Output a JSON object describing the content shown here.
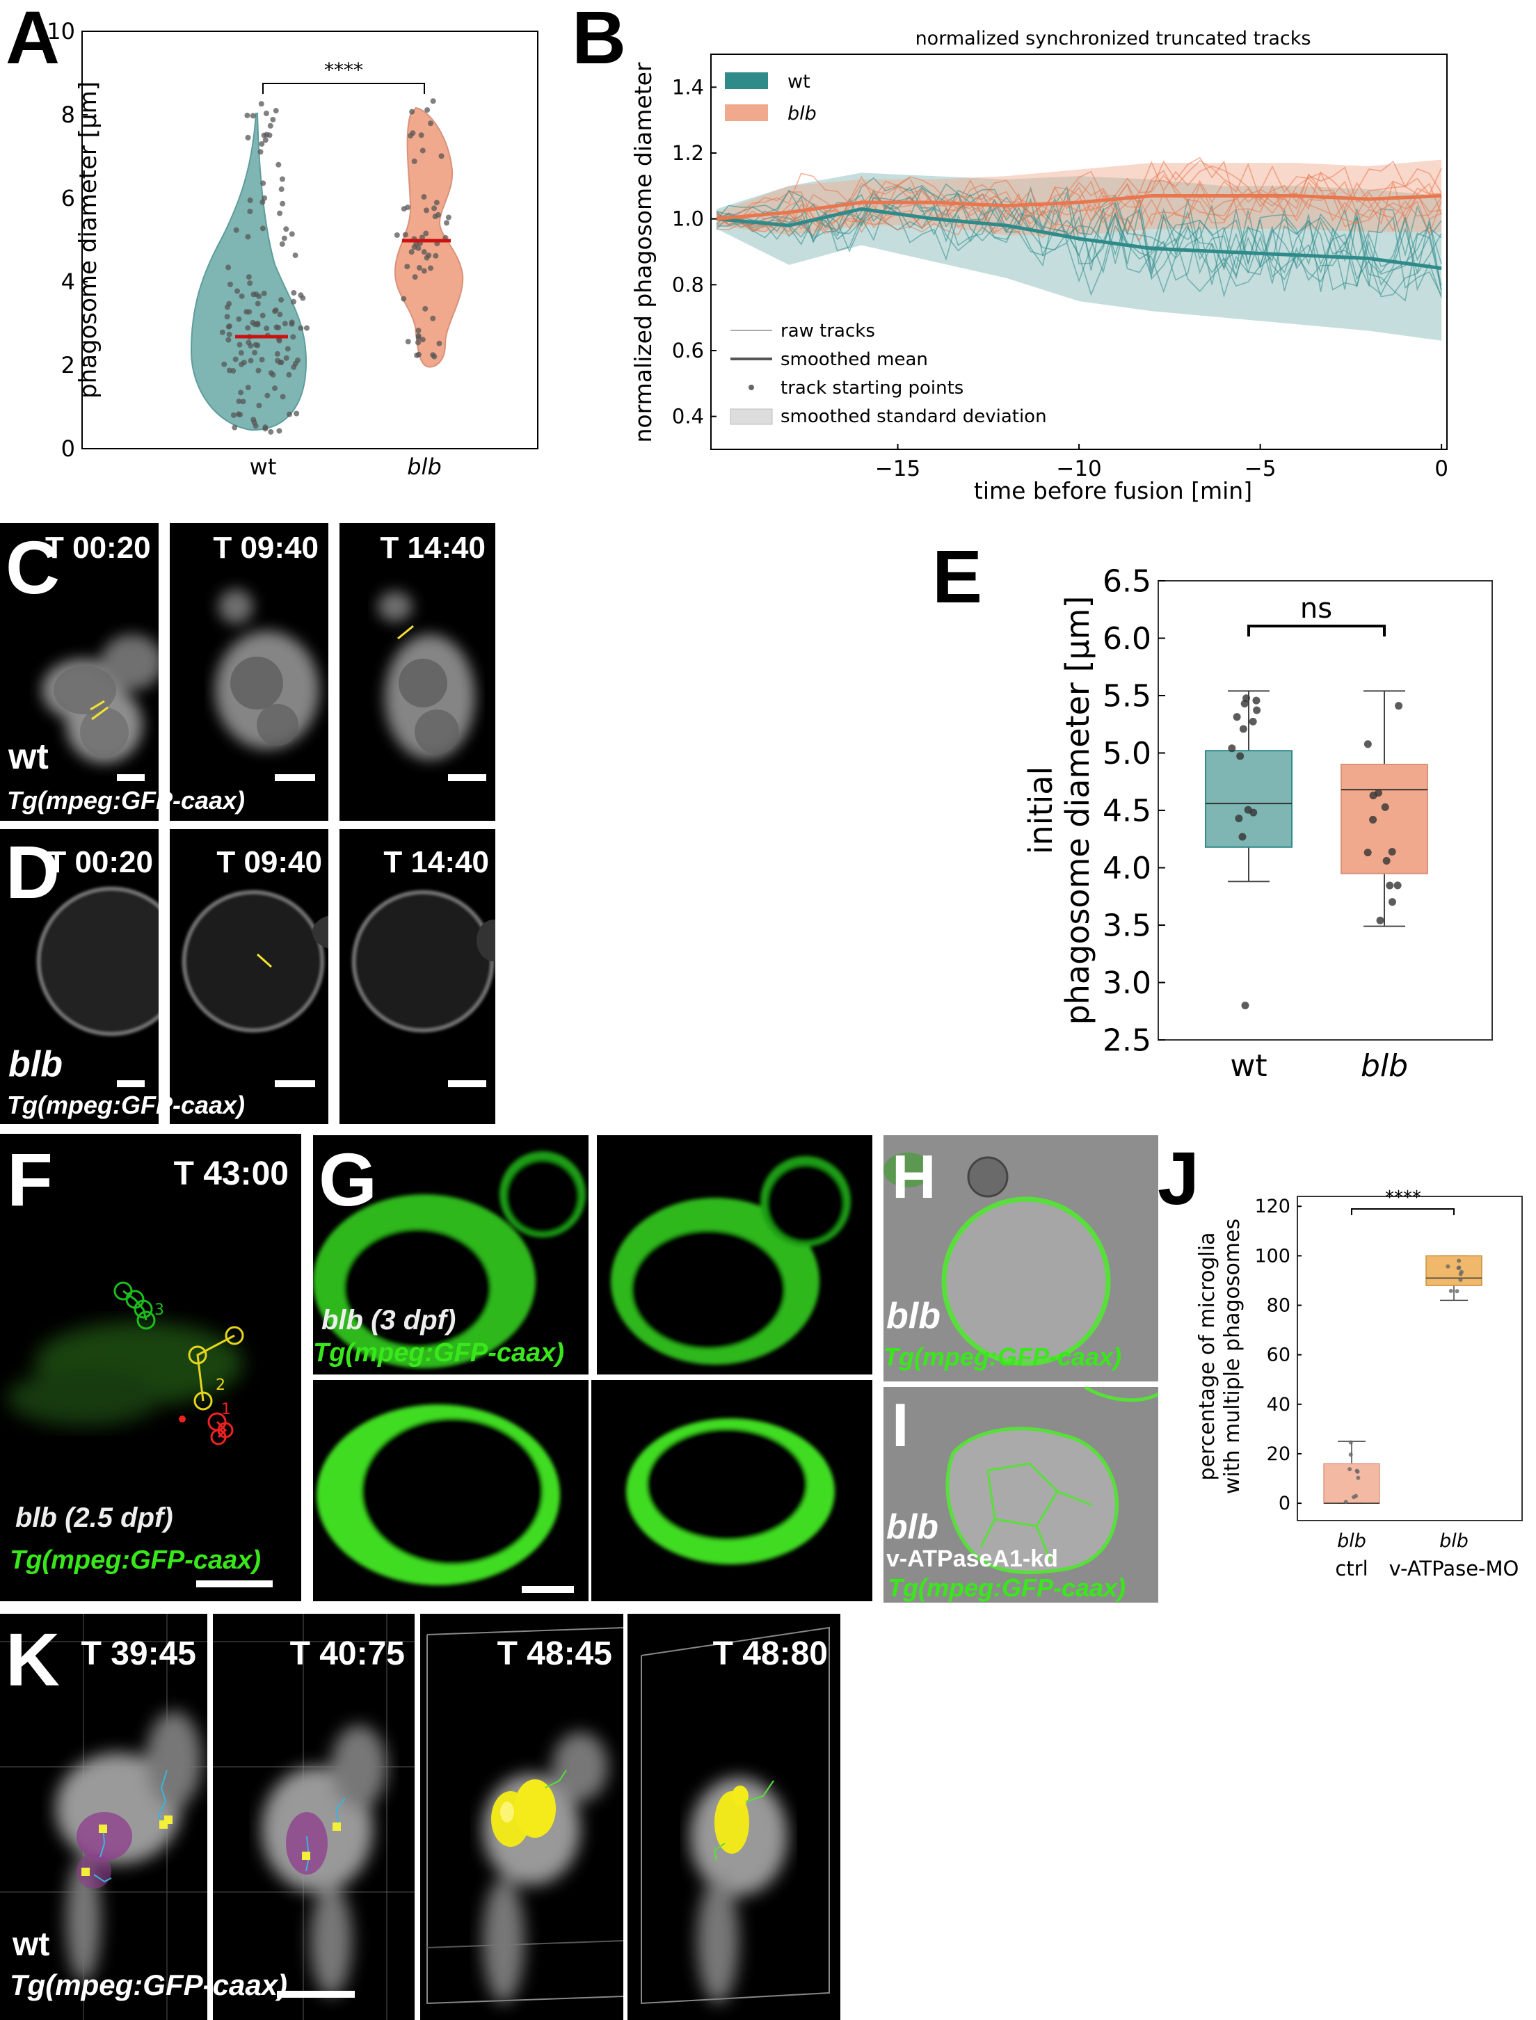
{
  "panels": {
    "A": {
      "letter": "A",
      "ylabel": "phagosome diameter [μm]",
      "yticks": [
        "0",
        "2",
        "4",
        "6",
        "8",
        "10"
      ],
      "xticks": [
        "wt",
        "blb"
      ],
      "significance": "****"
    },
    "B": {
      "letter": "B",
      "title": "normalized synchronized truncated tracks",
      "ylabel": "normalized phagosome diameter",
      "xlabel": "time before fusion [min]",
      "yticks": [
        "0.4",
        "0.6",
        "0.8",
        "1.0",
        "1.2",
        "1.4"
      ],
      "xticks": [
        "−15",
        "−10",
        "−5",
        "0"
      ],
      "legend_series": [
        "wt",
        "blb"
      ],
      "legend_keys": [
        "raw tracks",
        "smoothed mean",
        "track starting points",
        "smoothed standard deviation"
      ]
    },
    "C": {
      "letter": "C",
      "times": [
        "T 00:20",
        "T 09:40",
        "T 14:40"
      ],
      "genotype": "wt",
      "transgene": "Tg(mpeg:GFP-caax)"
    },
    "D": {
      "letter": "D",
      "times": [
        "T 00:20",
        "T 09:40",
        "T 14:40"
      ],
      "genotype": "blb",
      "transgene": "Tg(mpeg:GFP-caax)"
    },
    "E": {
      "letter": "E",
      "ylabel_line1": "initial",
      "ylabel_line2": "phagosome diameter [μm]",
      "yticks": [
        "2.5",
        "3.0",
        "3.5",
        "4.0",
        "4.5",
        "5.0",
        "5.5",
        "6.0",
        "6.5"
      ],
      "xticks": [
        "wt",
        "blb"
      ],
      "significance": "ns"
    },
    "F": {
      "letter": "F",
      "time": "T 43:00",
      "genotype": "blb (2.5 dpf)",
      "transgene": "Tg(mpeg:GFP-caax)",
      "track_labels": [
        "1",
        "2",
        "3"
      ]
    },
    "G": {
      "letter": "G",
      "genotype": "blb (3 dpf)",
      "transgene": "Tg(mpeg:GFP-caax)"
    },
    "H": {
      "letter": "H",
      "genotype": "blb",
      "transgene": "Tg(mpeg:GFP-caax)"
    },
    "I": {
      "letter": "I",
      "genotype": "blb",
      "condition": "v-ATPaseA1-kd",
      "transgene": "Tg(mpeg:GFP-caax)"
    },
    "J": {
      "letter": "J",
      "ylabel_line1": "percentage of microglia",
      "ylabel_line2": "with multiple phagosomes",
      "yticks": [
        "0",
        "20",
        "40",
        "60",
        "80",
        "100",
        "120"
      ],
      "xgenotype": [
        "blb",
        "blb"
      ],
      "xticks": [
        "ctrl",
        "v-ATPase-MO"
      ],
      "significance": "****"
    },
    "K": {
      "letter": "K",
      "times": [
        "T 39:45",
        "T 40:75",
        "T 48:45",
        "T 48:80"
      ],
      "genotype": "wt",
      "transgene": "Tg(mpeg:GFP-caax)"
    }
  },
  "colors": {
    "wt": "#2f8a8a",
    "wt_fill": "#7fb6b4",
    "blb": "#e8774f",
    "blb_fill": "#f0a98c",
    "median": "#cc1111",
    "J_box": "#f0b86a",
    "J_ctrl": "#f3b9a3",
    "green": "#39e81a"
  },
  "chart_data": [
    {
      "panel": "A",
      "type": "violin",
      "categories": [
        "wt",
        "blb"
      ],
      "medians": [
        2.8,
        5.2
      ],
      "ylim": [
        0,
        10
      ],
      "ylabel": "phagosome diameter [μm]"
    },
    {
      "panel": "B",
      "type": "line",
      "title": "normalized synchronized truncated tracks",
      "xlabel": "time before fusion [min]",
      "ylabel": "normalized phagosome diameter",
      "xlim": [
        -20,
        0
      ],
      "ylim": [
        0.3,
        1.5
      ],
      "series": [
        {
          "name": "wt",
          "x": [
            -20,
            -18,
            -16,
            -14,
            -12,
            -10,
            -8,
            -6,
            -4,
            -2,
            0
          ],
          "values": [
            1.0,
            0.98,
            1.03,
            1.0,
            0.98,
            0.94,
            0.91,
            0.9,
            0.89,
            0.88,
            0.85
          ],
          "sd_upper": [
            1.03,
            1.1,
            1.14,
            1.13,
            1.12,
            1.13,
            1.12,
            1.1,
            1.1,
            1.09,
            1.07
          ],
          "sd_lower": [
            0.97,
            0.86,
            0.92,
            0.87,
            0.82,
            0.75,
            0.72,
            0.7,
            0.68,
            0.66,
            0.63
          ]
        },
        {
          "name": "blb",
          "x": [
            -20,
            -18,
            -16,
            -14,
            -12,
            -10,
            -8,
            -6,
            -4,
            -2,
            0
          ],
          "values": [
            1.0,
            1.02,
            1.05,
            1.05,
            1.04,
            1.05,
            1.07,
            1.07,
            1.07,
            1.06,
            1.07
          ],
          "sd_upper": [
            1.02,
            1.1,
            1.12,
            1.12,
            1.13,
            1.15,
            1.17,
            1.17,
            1.17,
            1.16,
            1.18
          ],
          "sd_lower": [
            0.98,
            0.95,
            0.98,
            0.98,
            0.95,
            0.95,
            0.97,
            0.97,
            0.97,
            0.96,
            0.96
          ]
        }
      ]
    },
    {
      "panel": "E",
      "type": "box",
      "categories": [
        "wt",
        "blb"
      ],
      "ylim": [
        2.5,
        6.5
      ],
      "boxes": [
        {
          "min": 3.88,
          "q1": 4.18,
          "median": 4.56,
          "q3": 5.02,
          "max": 5.54,
          "outliers": [
            2.8
          ]
        },
        {
          "min": 3.49,
          "q1": 3.95,
          "median": 4.68,
          "q3": 4.9,
          "max": 5.54,
          "outliers": []
        }
      ]
    },
    {
      "panel": "J",
      "type": "box",
      "categories": [
        "ctrl",
        "v-ATPase-MO"
      ],
      "ylim": [
        0,
        120
      ],
      "boxes": [
        {
          "min": 0,
          "q1": 0,
          "median": 0,
          "q3": 16,
          "max": 25
        },
        {
          "min": 82,
          "q1": 88,
          "median": 91,
          "q3": 100,
          "max": 100
        }
      ]
    }
  ]
}
